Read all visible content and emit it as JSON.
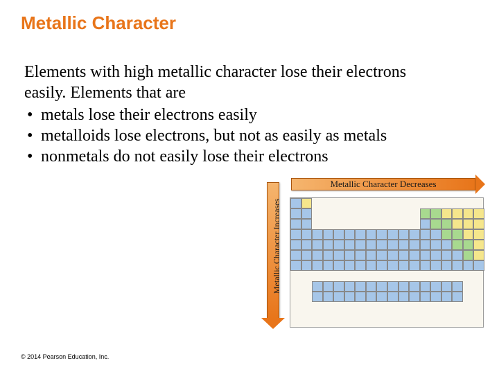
{
  "title": "Metallic Character",
  "intro": "Elements with high metallic character lose their electrons easily.  Elements that are",
  "bullets": [
    "metals lose their electrons easily",
    "metalloids lose electrons, but not as easily as metals",
    "nonmetals do not easily lose their electrons"
  ],
  "figure": {
    "h_label": "Metallic Character Decreases",
    "v_label": "Metallic Character Increases",
    "colors": {
      "metal": "#a6c6e8",
      "metalloid": "#a8d98f",
      "nonmetal": "#f5e68c",
      "border": "#888888",
      "bg": "#f9f6ee",
      "arrow_fill_start": "#f5b56e",
      "arrow_fill_end": "#e8751a"
    },
    "cell_size": 15,
    "cols": 18,
    "rows": 9,
    "layout": [
      [
        1,
        0,
        "m"
      ],
      [
        2,
        0,
        "n"
      ],
      [
        1,
        1,
        "m"
      ],
      [
        2,
        1,
        "m"
      ],
      [
        13,
        1,
        "o"
      ],
      [
        14,
        1,
        "o"
      ],
      [
        15,
        1,
        "n"
      ],
      [
        16,
        1,
        "n"
      ],
      [
        17,
        1,
        "n"
      ],
      [
        18,
        1,
        "n"
      ],
      [
        1,
        2,
        "m"
      ],
      [
        2,
        2,
        "m"
      ],
      [
        13,
        2,
        "m"
      ],
      [
        14,
        2,
        "o"
      ],
      [
        15,
        2,
        "o"
      ],
      [
        16,
        2,
        "n"
      ],
      [
        17,
        2,
        "n"
      ],
      [
        18,
        2,
        "n"
      ],
      [
        1,
        3,
        "m"
      ],
      [
        2,
        3,
        "m"
      ],
      [
        3,
        3,
        "m"
      ],
      [
        4,
        3,
        "m"
      ],
      [
        5,
        3,
        "m"
      ],
      [
        6,
        3,
        "m"
      ],
      [
        7,
        3,
        "m"
      ],
      [
        8,
        3,
        "m"
      ],
      [
        9,
        3,
        "m"
      ],
      [
        10,
        3,
        "m"
      ],
      [
        11,
        3,
        "m"
      ],
      [
        12,
        3,
        "m"
      ],
      [
        13,
        3,
        "m"
      ],
      [
        14,
        3,
        "m"
      ],
      [
        15,
        3,
        "o"
      ],
      [
        16,
        3,
        "o"
      ],
      [
        17,
        3,
        "n"
      ],
      [
        18,
        3,
        "n"
      ],
      [
        1,
        4,
        "m"
      ],
      [
        2,
        4,
        "m"
      ],
      [
        3,
        4,
        "m"
      ],
      [
        4,
        4,
        "m"
      ],
      [
        5,
        4,
        "m"
      ],
      [
        6,
        4,
        "m"
      ],
      [
        7,
        4,
        "m"
      ],
      [
        8,
        4,
        "m"
      ],
      [
        9,
        4,
        "m"
      ],
      [
        10,
        4,
        "m"
      ],
      [
        11,
        4,
        "m"
      ],
      [
        12,
        4,
        "m"
      ],
      [
        13,
        4,
        "m"
      ],
      [
        14,
        4,
        "m"
      ],
      [
        15,
        4,
        "m"
      ],
      [
        16,
        4,
        "o"
      ],
      [
        17,
        4,
        "o"
      ],
      [
        18,
        4,
        "n"
      ],
      [
        1,
        5,
        "m"
      ],
      [
        2,
        5,
        "m"
      ],
      [
        3,
        5,
        "m"
      ],
      [
        4,
        5,
        "m"
      ],
      [
        5,
        5,
        "m"
      ],
      [
        6,
        5,
        "m"
      ],
      [
        7,
        5,
        "m"
      ],
      [
        8,
        5,
        "m"
      ],
      [
        9,
        5,
        "m"
      ],
      [
        10,
        5,
        "m"
      ],
      [
        11,
        5,
        "m"
      ],
      [
        12,
        5,
        "m"
      ],
      [
        13,
        5,
        "m"
      ],
      [
        14,
        5,
        "m"
      ],
      [
        15,
        5,
        "m"
      ],
      [
        16,
        5,
        "m"
      ],
      [
        17,
        5,
        "o"
      ],
      [
        18,
        5,
        "n"
      ],
      [
        1,
        6,
        "m"
      ],
      [
        2,
        6,
        "m"
      ],
      [
        3,
        6,
        "m"
      ],
      [
        4,
        6,
        "m"
      ],
      [
        5,
        6,
        "m"
      ],
      [
        6,
        6,
        "m"
      ],
      [
        7,
        6,
        "m"
      ],
      [
        8,
        6,
        "m"
      ],
      [
        9,
        6,
        "m"
      ],
      [
        10,
        6,
        "m"
      ],
      [
        11,
        6,
        "m"
      ],
      [
        12,
        6,
        "m"
      ],
      [
        13,
        6,
        "m"
      ],
      [
        14,
        6,
        "m"
      ],
      [
        15,
        6,
        "m"
      ],
      [
        16,
        6,
        "m"
      ],
      [
        17,
        6,
        "m"
      ],
      [
        18,
        6,
        "m"
      ],
      [
        3,
        8,
        "m"
      ],
      [
        4,
        8,
        "m"
      ],
      [
        5,
        8,
        "m"
      ],
      [
        6,
        8,
        "m"
      ],
      [
        7,
        8,
        "m"
      ],
      [
        8,
        8,
        "m"
      ],
      [
        9,
        8,
        "m"
      ],
      [
        10,
        8,
        "m"
      ],
      [
        11,
        8,
        "m"
      ],
      [
        12,
        8,
        "m"
      ],
      [
        13,
        8,
        "m"
      ],
      [
        14,
        8,
        "m"
      ],
      [
        15,
        8,
        "m"
      ],
      [
        16,
        8,
        "m"
      ],
      [
        3,
        9,
        "m"
      ],
      [
        4,
        9,
        "m"
      ],
      [
        5,
        9,
        "m"
      ],
      [
        6,
        9,
        "m"
      ],
      [
        7,
        9,
        "m"
      ],
      [
        8,
        9,
        "m"
      ],
      [
        9,
        9,
        "m"
      ],
      [
        10,
        9,
        "m"
      ],
      [
        11,
        9,
        "m"
      ],
      [
        12,
        9,
        "m"
      ],
      [
        13,
        9,
        "m"
      ],
      [
        14,
        9,
        "m"
      ],
      [
        15,
        9,
        "m"
      ],
      [
        16,
        9,
        "m"
      ]
    ]
  },
  "copyright": "© 2014 Pearson Education, Inc."
}
